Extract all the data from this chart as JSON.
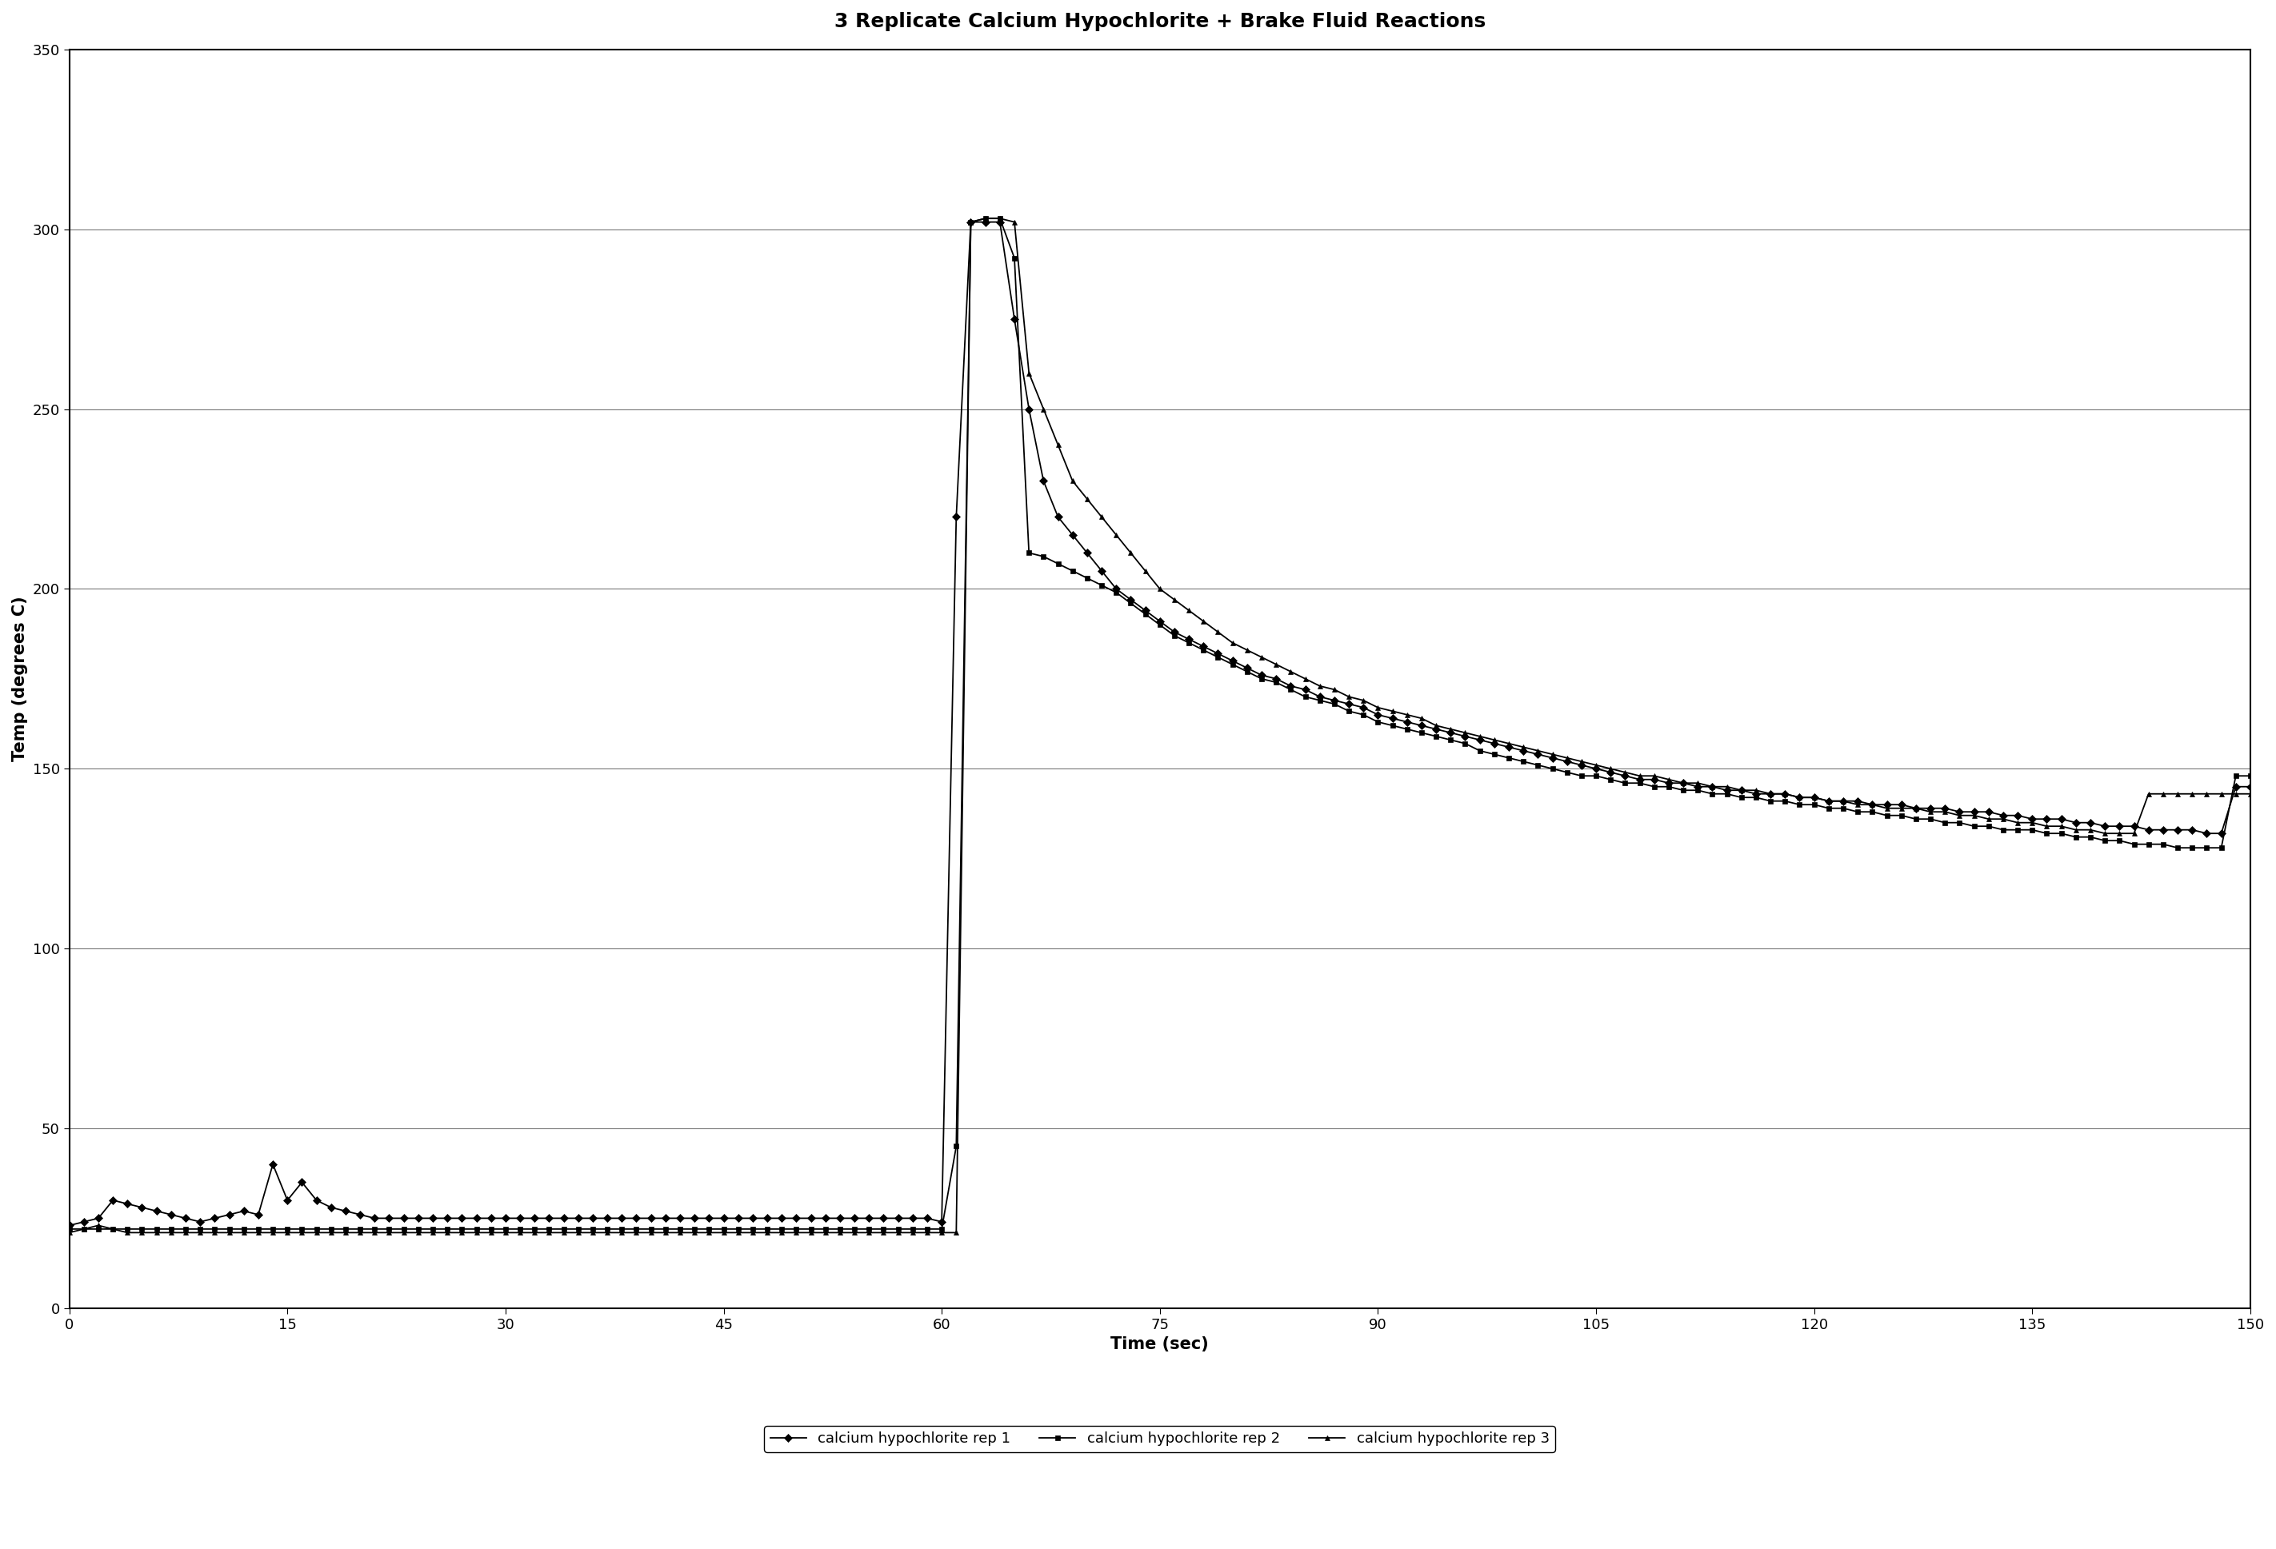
{
  "title": "3 Replicate Calcium Hypochlorite + Brake Fluid Reactions",
  "xlabel": "Time (sec)",
  "ylabel": "Temp (degrees C)",
  "xlim": [
    0,
    150
  ],
  "ylim": [
    0,
    350
  ],
  "xticks": [
    0,
    15,
    30,
    45,
    60,
    75,
    90,
    105,
    120,
    135,
    150
  ],
  "yticks": [
    0,
    50,
    100,
    150,
    200,
    250,
    300,
    350
  ],
  "background_color": "#ffffff",
  "legend_labels": [
    "calcium hypochlorite rep 1",
    "calcium hypochlorite rep 2",
    "calcium hypochlorite rep 3"
  ],
  "markers": [
    "D",
    "s",
    "^"
  ],
  "title_fontsize": 18,
  "axis_label_fontsize": 15,
  "tick_fontsize": 13,
  "legend_fontsize": 13,
  "rep1_x": [
    0,
    1,
    2,
    3,
    4,
    5,
    6,
    7,
    8,
    9,
    10,
    11,
    12,
    13,
    14,
    15,
    16,
    17,
    18,
    19,
    20,
    21,
    22,
    23,
    24,
    25,
    26,
    27,
    28,
    29,
    30,
    31,
    32,
    33,
    34,
    35,
    36,
    37,
    38,
    39,
    40,
    41,
    42,
    43,
    44,
    45,
    46,
    47,
    48,
    49,
    50,
    51,
    52,
    53,
    54,
    55,
    56,
    57,
    58,
    59,
    60,
    61,
    62,
    63,
    64,
    65,
    66,
    67,
    68,
    69,
    70,
    71,
    72,
    73,
    74,
    75,
    76,
    77,
    78,
    79,
    80,
    81,
    82,
    83,
    84,
    85,
    86,
    87,
    88,
    89,
    90,
    91,
    92,
    93,
    94,
    95,
    96,
    97,
    98,
    99,
    100,
    101,
    102,
    103,
    104,
    105,
    106,
    107,
    108,
    109,
    110,
    111,
    112,
    113,
    114,
    115,
    116,
    117,
    118,
    119,
    120,
    121,
    122,
    123,
    124,
    125,
    126,
    127,
    128,
    129,
    130,
    131,
    132,
    133,
    134,
    135,
    136,
    137,
    138,
    139,
    140,
    141,
    142,
    143,
    144,
    145,
    146,
    147,
    148,
    149,
    150
  ],
  "rep1_y": [
    23,
    24,
    25,
    30,
    29,
    28,
    27,
    26,
    25,
    24,
    25,
    26,
    27,
    26,
    40,
    30,
    35,
    30,
    28,
    27,
    26,
    25,
    25,
    25,
    25,
    25,
    25,
    25,
    25,
    25,
    25,
    25,
    25,
    25,
    25,
    25,
    25,
    25,
    25,
    25,
    25,
    25,
    25,
    25,
    25,
    25,
    25,
    25,
    25,
    25,
    25,
    25,
    25,
    25,
    25,
    25,
    25,
    25,
    25,
    25,
    24,
    220,
    302,
    302,
    302,
    275,
    250,
    230,
    220,
    215,
    210,
    205,
    200,
    197,
    194,
    191,
    188,
    186,
    184,
    182,
    180,
    178,
    176,
    175,
    173,
    172,
    170,
    169,
    168,
    167,
    165,
    164,
    163,
    162,
    161,
    160,
    159,
    158,
    157,
    156,
    155,
    154,
    153,
    152,
    151,
    150,
    149,
    148,
    147,
    147,
    146,
    146,
    145,
    145,
    144,
    144,
    143,
    143,
    143,
    142,
    142,
    141,
    141,
    141,
    140,
    140,
    140,
    139,
    139,
    139,
    138,
    138,
    138,
    137,
    137,
    136,
    136,
    136,
    135,
    135,
    134,
    134,
    134,
    133,
    133,
    133,
    133,
    132,
    132,
    145,
    145
  ],
  "rep2_x": [
    0,
    1,
    2,
    3,
    4,
    5,
    6,
    7,
    8,
    9,
    10,
    11,
    12,
    13,
    14,
    15,
    16,
    17,
    18,
    19,
    20,
    21,
    22,
    23,
    24,
    25,
    26,
    27,
    28,
    29,
    30,
    31,
    32,
    33,
    34,
    35,
    36,
    37,
    38,
    39,
    40,
    41,
    42,
    43,
    44,
    45,
    46,
    47,
    48,
    49,
    50,
    51,
    52,
    53,
    54,
    55,
    56,
    57,
    58,
    59,
    60,
    61,
    62,
    63,
    64,
    65,
    66,
    67,
    68,
    69,
    70,
    71,
    72,
    73,
    74,
    75,
    76,
    77,
    78,
    79,
    80,
    81,
    82,
    83,
    84,
    85,
    86,
    87,
    88,
    89,
    90,
    91,
    92,
    93,
    94,
    95,
    96,
    97,
    98,
    99,
    100,
    101,
    102,
    103,
    104,
    105,
    106,
    107,
    108,
    109,
    110,
    111,
    112,
    113,
    114,
    115,
    116,
    117,
    118,
    119,
    120,
    121,
    122,
    123,
    124,
    125,
    126,
    127,
    128,
    129,
    130,
    131,
    132,
    133,
    134,
    135,
    136,
    137,
    138,
    139,
    140,
    141,
    142,
    143,
    144,
    145,
    146,
    147,
    148,
    149,
    150
  ],
  "rep2_y": [
    22,
    22,
    22,
    22,
    22,
    22,
    22,
    22,
    22,
    22,
    22,
    22,
    22,
    22,
    22,
    22,
    22,
    22,
    22,
    22,
    22,
    22,
    22,
    22,
    22,
    22,
    22,
    22,
    22,
    22,
    22,
    22,
    22,
    22,
    22,
    22,
    22,
    22,
    22,
    22,
    22,
    22,
    22,
    22,
    22,
    22,
    22,
    22,
    22,
    22,
    22,
    22,
    22,
    22,
    22,
    22,
    22,
    22,
    22,
    22,
    22,
    45,
    302,
    303,
    303,
    292,
    210,
    209,
    207,
    205,
    203,
    201,
    199,
    196,
    193,
    190,
    187,
    185,
    183,
    181,
    179,
    177,
    175,
    174,
    172,
    170,
    169,
    168,
    166,
    165,
    163,
    162,
    161,
    160,
    159,
    158,
    157,
    155,
    154,
    153,
    152,
    151,
    150,
    149,
    148,
    148,
    147,
    146,
    146,
    145,
    145,
    144,
    144,
    143,
    143,
    142,
    142,
    141,
    141,
    140,
    140,
    139,
    139,
    138,
    138,
    137,
    137,
    136,
    136,
    135,
    135,
    134,
    134,
    133,
    133,
    133,
    132,
    132,
    131,
    131,
    130,
    130,
    129,
    129,
    129,
    128,
    128,
    128,
    128,
    148,
    148
  ],
  "rep3_x": [
    0,
    1,
    2,
    3,
    4,
    5,
    6,
    7,
    8,
    9,
    10,
    11,
    12,
    13,
    14,
    15,
    16,
    17,
    18,
    19,
    20,
    21,
    22,
    23,
    24,
    25,
    26,
    27,
    28,
    29,
    30,
    31,
    32,
    33,
    34,
    35,
    36,
    37,
    38,
    39,
    40,
    41,
    42,
    43,
    44,
    45,
    46,
    47,
    48,
    49,
    50,
    51,
    52,
    53,
    54,
    55,
    56,
    57,
    58,
    59,
    60,
    61,
    62,
    63,
    64,
    65,
    66,
    67,
    68,
    69,
    70,
    71,
    72,
    73,
    74,
    75,
    76,
    77,
    78,
    79,
    80,
    81,
    82,
    83,
    84,
    85,
    86,
    87,
    88,
    89,
    90,
    91,
    92,
    93,
    94,
    95,
    96,
    97,
    98,
    99,
    100,
    101,
    102,
    103,
    104,
    105,
    106,
    107,
    108,
    109,
    110,
    111,
    112,
    113,
    114,
    115,
    116,
    117,
    118,
    119,
    120,
    121,
    122,
    123,
    124,
    125,
    126,
    127,
    128,
    129,
    130,
    131,
    132,
    133,
    134,
    135,
    136,
    137,
    138,
    139,
    140,
    141,
    142,
    143,
    144,
    145,
    146,
    147,
    148,
    149,
    150
  ],
  "rep3_y": [
    21,
    22,
    23,
    22,
    21,
    21,
    21,
    21,
    21,
    21,
    21,
    21,
    21,
    21,
    21,
    21,
    21,
    21,
    21,
    21,
    21,
    21,
    21,
    21,
    21,
    21,
    21,
    21,
    21,
    21,
    21,
    21,
    21,
    21,
    21,
    21,
    21,
    21,
    21,
    21,
    21,
    21,
    21,
    21,
    21,
    21,
    21,
    21,
    21,
    21,
    21,
    21,
    21,
    21,
    21,
    21,
    21,
    21,
    21,
    21,
    21,
    21,
    302,
    303,
    303,
    302,
    260,
    250,
    240,
    230,
    225,
    220,
    215,
    210,
    205,
    200,
    197,
    194,
    191,
    188,
    185,
    183,
    181,
    179,
    177,
    175,
    173,
    172,
    170,
    169,
    167,
    166,
    165,
    164,
    162,
    161,
    160,
    159,
    158,
    157,
    156,
    155,
    154,
    153,
    152,
    151,
    150,
    149,
    148,
    148,
    147,
    146,
    146,
    145,
    145,
    144,
    144,
    143,
    143,
    142,
    142,
    141,
    141,
    140,
    140,
    139,
    139,
    139,
    138,
    138,
    137,
    137,
    136,
    136,
    135,
    135,
    134,
    134,
    133,
    133,
    132,
    132,
    132,
    143,
    143,
    143,
    143,
    143,
    143,
    143,
    143
  ]
}
